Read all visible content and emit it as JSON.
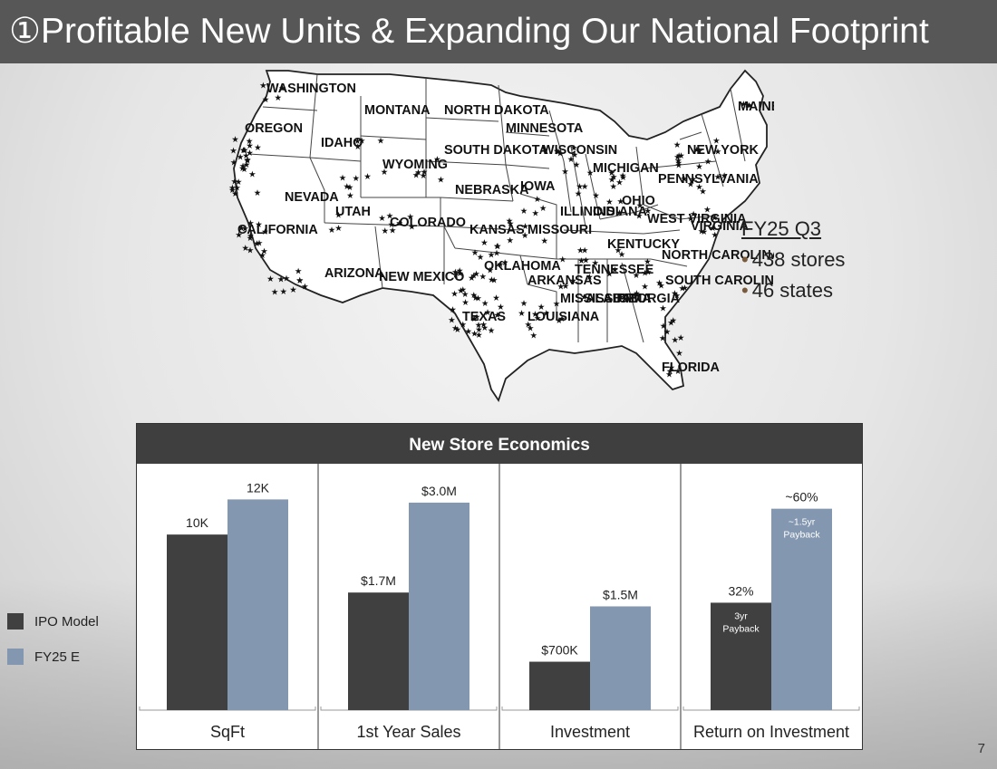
{
  "slide": {
    "title": "①Profitable New Units & Expanding Our National Footprint",
    "page_number": "7"
  },
  "footprint": {
    "heading": "FY25 Q3",
    "bullets": [
      "438 stores",
      "46 states"
    ]
  },
  "map_labels": [
    "WASHINGTON",
    "OREGON",
    "MONTANA",
    "IDAHO",
    "WYOMING",
    "NEVADA",
    "UTAH",
    "COLORADO",
    "CALIFORNIA",
    "ARIZONA",
    "NEW MEXICO",
    "NORTH DAKOTA",
    "SOUTH DAKOTA",
    "NEBRASKA",
    "KANSAS",
    "OKLAHOMA",
    "TEXAS",
    "MINNESOTA",
    "IOWA",
    "MISSOURI",
    "ARKANSAS",
    "LOUISIANA",
    "WISCONSIN",
    "ILLINOIS",
    "MICHIGAN",
    "INDIANA",
    "OHIO",
    "KENTUCKY",
    "TENNESSEE",
    "MISSISSIPPI",
    "ALABAMA",
    "GEORGIA",
    "FLORIDA",
    "SOUTH CAROLINA",
    "NORTH CAROLINA",
    "VIRGINIA",
    "WEST VIRGINIA",
    "PENNSYLVANIA",
    "NEW YORK",
    "MAINE"
  ],
  "colors": {
    "ipo_model": "#404040",
    "fy25_e": "#8497b0",
    "header_bg": "#3f3f3f",
    "title_bg": "#575757"
  },
  "chart_data": {
    "type": "bar",
    "title": "New Store Economics",
    "legend_position": "left",
    "series": [
      {
        "name": "IPO Model",
        "color": "#404040"
      },
      {
        "name": "FY25 E",
        "color": "#8497b0"
      }
    ],
    "panels": [
      {
        "category": "SqFt",
        "values": [
          10000,
          12000
        ],
        "labels": [
          "10K",
          "12K"
        ],
        "inner_labels": [
          "",
          ""
        ],
        "ymax": 13000
      },
      {
        "category": "1st Year Sales",
        "values": [
          1.7,
          3.0
        ],
        "labels": [
          "$1.7M",
          "$3.0M"
        ],
        "inner_labels": [
          "",
          ""
        ],
        "ymax": 3.3
      },
      {
        "category": "Investment",
        "values": [
          0.7,
          1.5
        ],
        "labels": [
          "$700K",
          "$1.5M"
        ],
        "inner_labels": [
          "",
          ""
        ],
        "ymax": 3.3
      },
      {
        "category": "Return on Investment",
        "values": [
          32,
          60
        ],
        "labels": [
          "32%",
          "~60%"
        ],
        "inner_labels": [
          "3yr\nPayback",
          "~1.5yr\nPayback"
        ],
        "ymax": 68
      }
    ]
  }
}
